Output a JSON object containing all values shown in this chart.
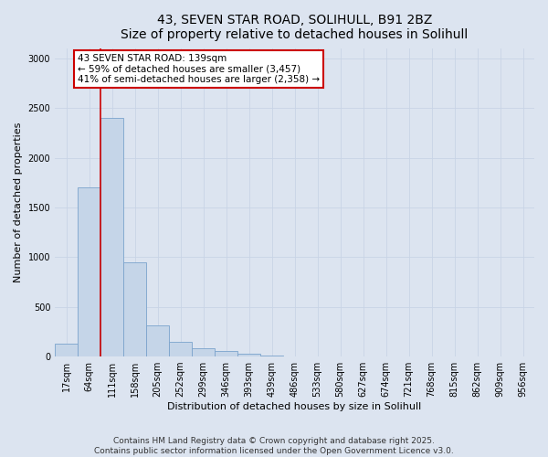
{
  "title_line1": "43, SEVEN STAR ROAD, SOLIHULL, B91 2BZ",
  "title_line2": "Size of property relative to detached houses in Solihull",
  "xlabel": "Distribution of detached houses by size in Solihull",
  "ylabel": "Number of detached properties",
  "bar_labels": [
    "17sqm",
    "64sqm",
    "111sqm",
    "158sqm",
    "205sqm",
    "252sqm",
    "299sqm",
    "346sqm",
    "393sqm",
    "439sqm",
    "486sqm",
    "533sqm",
    "580sqm",
    "627sqm",
    "674sqm",
    "721sqm",
    "768sqm",
    "815sqm",
    "862sqm",
    "909sqm",
    "956sqm"
  ],
  "bar_values": [
    130,
    1700,
    2400,
    950,
    310,
    150,
    85,
    55,
    30,
    12,
    5,
    3,
    2,
    1,
    0,
    0,
    0,
    0,
    0,
    0,
    0
  ],
  "bar_color": "#c5d5e8",
  "bar_edge_color": "#7ba3cc",
  "vline_x_index": 2,
  "annotation_text_line1": "43 SEVEN STAR ROAD: 139sqm",
  "annotation_text_line2": "← 59% of detached houses are smaller (3,457)",
  "annotation_text_line3": "41% of semi-detached houses are larger (2,358) →",
  "annotation_box_color": "#ffffff",
  "annotation_box_edge_color": "#cc0000",
  "vline_color": "#cc0000",
  "ylim": [
    0,
    3100
  ],
  "yticks": [
    0,
    500,
    1000,
    1500,
    2000,
    2500,
    3000
  ],
  "grid_color": "#c8d4e6",
  "background_color": "#dce4f0",
  "footer_line1": "Contains HM Land Registry data © Crown copyright and database right 2025.",
  "footer_line2": "Contains public sector information licensed under the Open Government Licence v3.0.",
  "title_fontsize": 10,
  "axis_label_fontsize": 8,
  "tick_fontsize": 7,
  "annotation_fontsize": 7.5,
  "footer_fontsize": 6.5
}
